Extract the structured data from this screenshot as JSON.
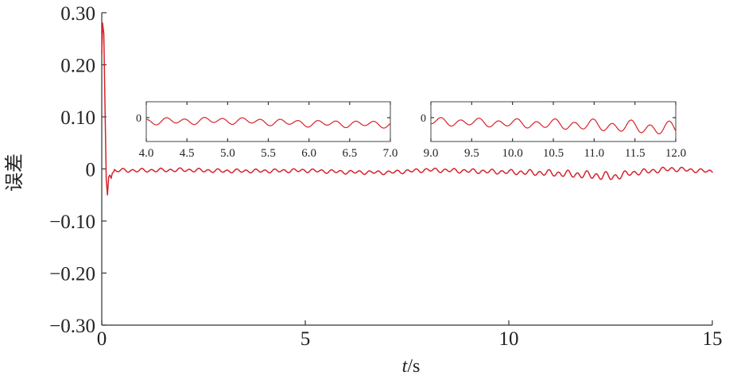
{
  "chart_data": {
    "type": "line",
    "title": "",
    "xlabel_italic": "t",
    "xlabel_unit": "/s",
    "ylabel": "误差",
    "xlim": [
      0,
      15
    ],
    "ylim": [
      -0.3,
      0.3
    ],
    "x_ticks": [
      0,
      5,
      10,
      15
    ],
    "x_tick_labels": [
      "0",
      "5",
      "10",
      "15"
    ],
    "y_ticks": [
      0.3,
      0.2,
      0.1,
      0,
      -0.1,
      -0.2,
      -0.3
    ],
    "y_tick_labels": [
      "0.30",
      "0.20",
      "0.10",
      "0",
      "−0.10",
      "−0.20",
      "−0.30"
    ],
    "color": "#d6222a",
    "series": [
      {
        "transient": {
          "x": [
            0,
            0.02,
            0.05,
            0.08,
            0.11,
            0.14,
            0.17,
            0.2,
            0.23,
            0.26,
            0.3
          ],
          "y": [
            0.22,
            0.28,
            0.26,
            0.12,
            -0.02,
            -0.05,
            -0.015,
            -0.012,
            -0.018,
            -0.008,
            -0.005
          ]
        },
        "steady_state": {
          "x_range": [
            0.3,
            15
          ],
          "samples": [
            {
              "x": 1,
              "y": -0.003
            },
            {
              "x": 2,
              "y": -0.002
            },
            {
              "x": 3,
              "y": -0.004
            },
            {
              "x": 4,
              "y": -0.004
            },
            {
              "x": 5,
              "y": -0.003
            },
            {
              "x": 6,
              "y": -0.006
            },
            {
              "x": 7,
              "y": -0.007
            },
            {
              "x": 8,
              "y": -0.002
            },
            {
              "x": 9,
              "y": -0.004
            },
            {
              "x": 10,
              "y": -0.006
            },
            {
              "x": 11,
              "y": -0.008
            },
            {
              "x": 12,
              "y": -0.012
            },
            {
              "x": 12.6,
              "y": -0.015
            },
            {
              "x": 13,
              "y": -0.008
            },
            {
              "x": 14,
              "y": 0
            },
            {
              "x": 15,
              "y": -0.005
            }
          ],
          "oscillation_amplitude": [
            {
              "x": 0.3,
              "a": 0.004
            },
            {
              "x": 7,
              "a": 0.004
            },
            {
              "x": 10,
              "a": 0.005
            },
            {
              "x": 12.5,
              "a": 0.009
            },
            {
              "x": 13,
              "a": 0.006
            },
            {
              "x": 15,
              "a": 0.004
            }
          ]
        }
      }
    ],
    "insets": [
      {
        "xlim": [
          4.0,
          7.0
        ],
        "x_ticks": [
          4.0,
          4.5,
          5.0,
          5.5,
          6.0,
          6.5,
          7.0
        ],
        "x_tick_labels": [
          "4.0",
          "4.5",
          "5.0",
          "5.5",
          "6.0",
          "6.5",
          "7.0"
        ],
        "y_tick_labels": [
          "0"
        ]
      },
      {
        "xlim": [
          9.0,
          12.0
        ],
        "x_ticks": [
          9.0,
          9.5,
          10.0,
          10.5,
          11.0,
          11.5,
          12.0
        ],
        "x_tick_labels": [
          "9.0",
          "9.5",
          "10.0",
          "10.5",
          "11.0",
          "11.5",
          "12.0"
        ],
        "y_tick_labels": [
          "0"
        ]
      }
    ]
  }
}
